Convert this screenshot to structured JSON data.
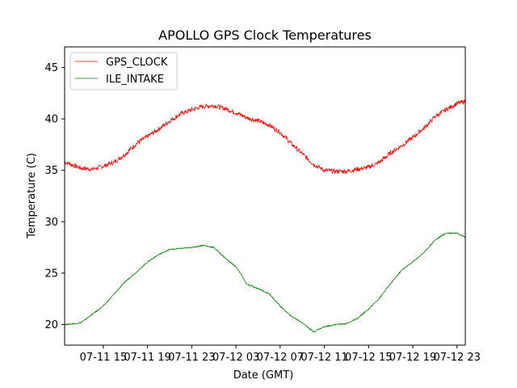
{
  "chart_data": {
    "type": "line",
    "title": "APOLLO GPS Clock Temperatures",
    "xlabel": "Date (GMT)",
    "ylabel": "Temperature (C)",
    "xlim": [
      "07-11 11:30",
      "07-12 23:45"
    ],
    "ylim": [
      18,
      47
    ],
    "x_ticks": [
      "07-11 15",
      "07-11 19",
      "07-11 23",
      "07-12 03",
      "07-12 07",
      "07-12 11",
      "07-12 15",
      "07-12 19",
      "07-12 23"
    ],
    "y_ticks": [
      20,
      25,
      30,
      35,
      40,
      45
    ],
    "legend_position": "top-left",
    "grid": false,
    "series": [
      {
        "name": "GPS_CLOCK",
        "color": "#ff0000",
        "points": [
          [
            "07-11 11:30",
            35.8
          ],
          [
            "07-11 13:00",
            35.2
          ],
          [
            "07-11 14:00",
            35.1
          ],
          [
            "07-11 15:00",
            35.4
          ],
          [
            "07-11 16:00",
            35.8
          ],
          [
            "07-11 17:00",
            36.6
          ],
          [
            "07-11 18:00",
            37.6
          ],
          [
            "07-11 19:00",
            38.3
          ],
          [
            "07-11 20:00",
            39.0
          ],
          [
            "07-11 21:00",
            39.8
          ],
          [
            "07-11 22:00",
            40.5
          ],
          [
            "07-11 23:00",
            40.9
          ],
          [
            "07-12 00:00",
            41.2
          ],
          [
            "07-12 01:00",
            41.3
          ],
          [
            "07-12 02:00",
            41.0
          ],
          [
            "07-12 03:00",
            40.6
          ],
          [
            "07-12 04:00",
            40.1
          ],
          [
            "07-12 05:00",
            39.8
          ],
          [
            "07-12 06:00",
            39.4
          ],
          [
            "07-12 07:00",
            38.7
          ],
          [
            "07-12 08:00",
            37.6
          ],
          [
            "07-12 09:00",
            36.6
          ],
          [
            "07-12 10:00",
            35.6
          ],
          [
            "07-12 11:00",
            35.0
          ],
          [
            "07-12 12:00",
            34.9
          ],
          [
            "07-12 13:00",
            34.9
          ],
          [
            "07-12 14:00",
            35.1
          ],
          [
            "07-12 15:00",
            35.3
          ],
          [
            "07-12 16:00",
            35.8
          ],
          [
            "07-12 17:00",
            36.7
          ],
          [
            "07-12 18:00",
            37.4
          ],
          [
            "07-12 19:00",
            38.2
          ],
          [
            "07-12 20:00",
            39.1
          ],
          [
            "07-12 21:00",
            40.2
          ],
          [
            "07-12 22:00",
            40.9
          ],
          [
            "07-12 23:00",
            41.5
          ],
          [
            "07-12 23:45",
            41.7
          ]
        ]
      },
      {
        "name": "ILE_INTAKE",
        "color": "#008000",
        "points": [
          [
            "07-11 11:30",
            20.0
          ],
          [
            "07-11 12:30",
            20.1
          ],
          [
            "07-11 13:00",
            20.2
          ],
          [
            "07-11 14:00",
            21.0
          ],
          [
            "07-11 15:00",
            21.8
          ],
          [
            "07-11 16:00",
            23.0
          ],
          [
            "07-11 17:00",
            24.2
          ],
          [
            "07-11 18:00",
            25.1
          ],
          [
            "07-11 19:00",
            26.1
          ],
          [
            "07-11 20:00",
            26.8
          ],
          [
            "07-11 21:00",
            27.3
          ],
          [
            "07-11 22:00",
            27.4
          ],
          [
            "07-11 23:00",
            27.5
          ],
          [
            "07-12 00:00",
            27.7
          ],
          [
            "07-12 01:00",
            27.5
          ],
          [
            "07-12 02:00",
            26.5
          ],
          [
            "07-12 03:00",
            25.6
          ],
          [
            "07-12 03:30",
            24.8
          ],
          [
            "07-12 04:00",
            23.9
          ],
          [
            "07-12 05:00",
            23.5
          ],
          [
            "07-12 06:00",
            23.0
          ],
          [
            "07-12 07:00",
            21.8
          ],
          [
            "07-12 08:00",
            20.8
          ],
          [
            "07-12 09:00",
            20.2
          ],
          [
            "07-12 10:00",
            19.3
          ],
          [
            "07-12 11:00",
            19.8
          ],
          [
            "07-12 12:00",
            20.0
          ],
          [
            "07-12 13:00",
            20.1
          ],
          [
            "07-12 14:00",
            20.6
          ],
          [
            "07-12 15:00",
            21.5
          ],
          [
            "07-12 16:00",
            22.6
          ],
          [
            "07-12 17:00",
            24.0
          ],
          [
            "07-12 18:00",
            25.3
          ],
          [
            "07-12 19:00",
            26.1
          ],
          [
            "07-12 20:00",
            27.0
          ],
          [
            "07-12 21:00",
            28.2
          ],
          [
            "07-12 22:00",
            28.9
          ],
          [
            "07-12 23:00",
            28.9
          ],
          [
            "07-12 23:45",
            28.5
          ]
        ]
      }
    ]
  }
}
